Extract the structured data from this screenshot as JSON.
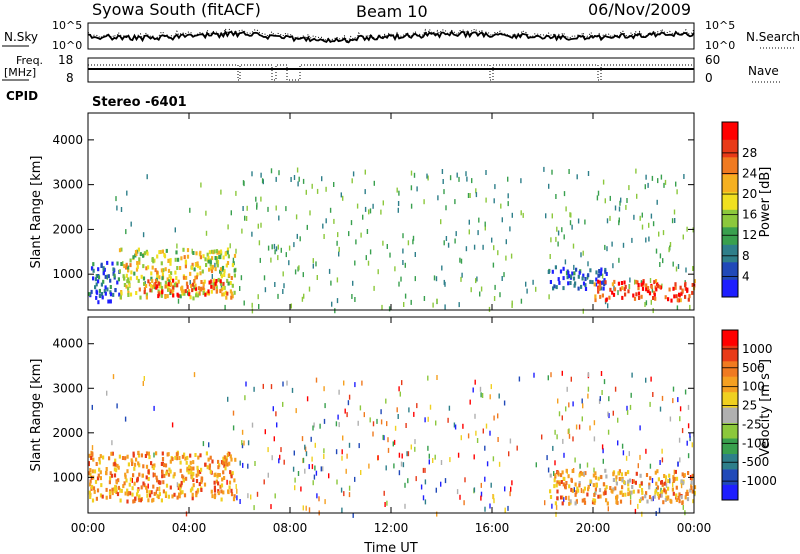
{
  "header": {
    "station": "Syowa South (fitACF)",
    "beam": "Beam 10",
    "date": "06/Nov/2009"
  },
  "noise_panel": {
    "left_label": "N.Sky",
    "left_ticks": [
      "10^5",
      "10^0"
    ],
    "right_label": "N.Search",
    "right_ticks": [
      "10^5",
      "10^0"
    ]
  },
  "freq_panel": {
    "left_label_1": "Freq.",
    "left_label_2": "[MHz]",
    "left_ticks": [
      "18",
      "8"
    ],
    "right_label": "Nave",
    "right_ticks": [
      "60",
      "0"
    ]
  },
  "cpid": {
    "label": "CPID",
    "value": "Stereo -6401"
  },
  "chart_data": [
    {
      "type": "heatmap",
      "name": "power",
      "ylabel": "Slant Range [km]",
      "xlabel": "",
      "ylim": [
        200,
        4600
      ],
      "yticks": [
        "1000",
        "2000",
        "3000",
        "4000"
      ],
      "colorbar": {
        "label": "Power [dB]",
        "ticks": [
          "4",
          "8",
          "12",
          "16",
          "20",
          "24",
          "28"
        ],
        "colors": [
          "#1f1fff",
          "#2049b8",
          "#2e7f8a",
          "#39a04e",
          "#8cc83c",
          "#f0e020",
          "#f5b020",
          "#f07a20",
          "#e83a18",
          "#ff0000"
        ]
      },
      "echo_regions": [
        {
          "t0": 0.0,
          "t1": 1.2,
          "r0": 400,
          "r1": 1300,
          "level": 0.15
        },
        {
          "t0": 1.2,
          "t1": 5.8,
          "r0": 500,
          "r1": 1600,
          "level": 0.55
        },
        {
          "t0": 2.2,
          "t1": 5.5,
          "r0": 550,
          "r1": 900,
          "level": 0.85
        },
        {
          "t0": 18.2,
          "t1": 20.5,
          "r0": 700,
          "r1": 1200,
          "level": 0.1
        },
        {
          "t0": 20.0,
          "t1": 24.0,
          "r0": 450,
          "r1": 900,
          "level": 0.9
        }
      ]
    },
    {
      "type": "heatmap",
      "name": "velocity",
      "ylabel": "Slant Range [km]",
      "xlabel": "Time UT",
      "ylim": [
        200,
        4600
      ],
      "yticks": [
        "1000",
        "2000",
        "3000",
        "4000"
      ],
      "xticks": [
        "00:00",
        "04:00",
        "08:00",
        "12:00",
        "16:00",
        "20:00",
        "00:00"
      ],
      "colorbar": {
        "label": "Velocity [m s",
        "label_sup": "-1",
        "label_end": "]",
        "ticks": [
          "1000",
          "500",
          "100",
          "25",
          "-25",
          "-100",
          "-500",
          "-1000"
        ],
        "colors": [
          "#1f1fff",
          "#2049b8",
          "#2e7f8a",
          "#39a04e",
          "#8cc83c",
          "#b0b0b0",
          "#f0d020",
          "#f5a020",
          "#f07a20",
          "#e83a18",
          "#ff0000"
        ]
      },
      "echo_regions": [
        {
          "t0": 0.0,
          "t1": 5.8,
          "r0": 500,
          "r1": 1600,
          "level": 0.75
        },
        {
          "t0": 18.2,
          "t1": 24.0,
          "r0": 450,
          "r1": 1200,
          "level": 0.7
        }
      ]
    }
  ]
}
